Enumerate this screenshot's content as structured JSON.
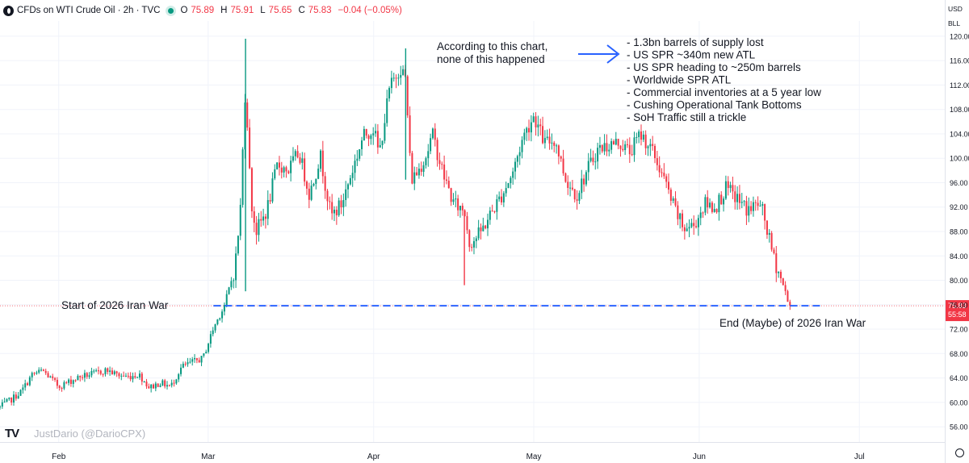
{
  "header": {
    "symbol": "CFDs on WTI Crude Oil · 2h · TVC",
    "o_label": "O",
    "o_value": "75.89",
    "h_label": "H",
    "h_value": "75.91",
    "l_label": "L",
    "l_value": "75.65",
    "c_label": "C",
    "c_value": "75.83",
    "change": "−0.04 (−0.05%)"
  },
  "currency": "USD",
  "unit": "BLL",
  "watermark": "JustDario (@DarioCPX)",
  "tv_logo": "TV",
  "colors": {
    "up": "#089981",
    "down": "#f23645",
    "trend_line": "#2962ff",
    "arrow": "#2962ff",
    "grid": "#f0f3fa",
    "text": "#131722"
  },
  "chart_data": {
    "type": "candlestick",
    "title": "CFDs on WTI Crude Oil · 2h · TVC",
    "xlabel": "",
    "ylabel": "",
    "ylim": [
      53.5,
      122.5
    ],
    "y_ticks": [
      "56.00",
      "60.00",
      "64.00",
      "68.00",
      "72.00",
      "76.00",
      "80.00",
      "84.00",
      "88.00",
      "92.00",
      "96.00",
      "100.00",
      "104.00",
      "108.00",
      "112.00",
      "116.00",
      "120.00"
    ],
    "x_ticks": [
      "Feb",
      "Mar",
      "Apr",
      "May",
      "Jun",
      "Jul"
    ],
    "x_domain": [
      "2026-01-21",
      "2026-07-17"
    ],
    "x_tick_dates": [
      "2026-02-01",
      "2026-03-01",
      "2026-04-01",
      "2026-05-01",
      "2026-06-01",
      "2026-07-01"
    ],
    "grid": true,
    "last_price": "75.83",
    "countdown": "55:58",
    "price_path": [
      [
        "2026-01-21",
        59.2
      ],
      [
        "2026-01-23",
        60.4
      ],
      [
        "2026-01-25",
        61.8
      ],
      [
        "2026-01-27",
        64.5
      ],
      [
        "2026-01-29",
        65.2
      ],
      [
        "2026-02-01",
        62.6
      ],
      [
        "2026-02-03",
        63.4
      ],
      [
        "2026-02-05",
        64.2
      ],
      [
        "2026-02-08",
        64.8
      ],
      [
        "2026-02-10",
        65.3
      ],
      [
        "2026-02-12",
        64.5
      ],
      [
        "2026-02-14",
        64.2
      ],
      [
        "2026-02-16",
        64.6
      ],
      [
        "2026-02-18",
        62.4
      ],
      [
        "2026-02-20",
        63.2
      ],
      [
        "2026-02-22",
        62.6
      ],
      [
        "2026-02-24",
        65.8
      ],
      [
        "2026-02-26",
        66.6
      ],
      [
        "2026-02-28",
        67.2
      ],
      [
        "2026-03-02",
        72.2
      ],
      [
        "2026-03-04",
        75.8
      ],
      [
        "2026-03-06",
        82.0
      ],
      [
        "2026-03-07",
        91.0
      ],
      [
        "2026-03-08",
        112.5
      ],
      [
        "2026-03-09",
        93.0
      ],
      [
        "2026-03-10",
        88.0
      ],
      [
        "2026-03-12",
        91.5
      ],
      [
        "2026-03-14",
        99.0
      ],
      [
        "2026-03-16",
        98.0
      ],
      [
        "2026-03-18",
        101.0
      ],
      [
        "2026-03-20",
        94.0
      ],
      [
        "2026-03-22",
        100.5
      ],
      [
        "2026-03-24",
        90.5
      ],
      [
        "2026-03-26",
        92.5
      ],
      [
        "2026-03-28",
        98.0
      ],
      [
        "2026-03-30",
        103.5
      ],
      [
        "2026-04-01",
        105.0
      ],
      [
        "2026-04-02",
        100.5
      ],
      [
        "2026-04-04",
        111.5
      ],
      [
        "2026-04-06",
        115.0
      ],
      [
        "2026-04-07",
        113.0
      ],
      [
        "2026-04-08",
        96.5
      ],
      [
        "2026-04-09",
        97.5
      ],
      [
        "2026-04-11",
        100.8
      ],
      [
        "2026-04-12",
        104.0
      ],
      [
        "2026-04-14",
        97.5
      ],
      [
        "2026-04-16",
        92.5
      ],
      [
        "2026-04-18",
        91.5
      ],
      [
        "2026-04-19",
        86.0
      ],
      [
        "2026-04-21",
        87.8
      ],
      [
        "2026-04-23",
        91.0
      ],
      [
        "2026-04-25",
        94.0
      ],
      [
        "2026-04-27",
        97.5
      ],
      [
        "2026-04-29",
        103.5
      ],
      [
        "2026-05-01",
        107.0
      ],
      [
        "2026-05-03",
        102.5
      ],
      [
        "2026-05-05",
        103.0
      ],
      [
        "2026-05-07",
        96.5
      ],
      [
        "2026-05-09",
        94.0
      ],
      [
        "2026-05-11",
        98.0
      ],
      [
        "2026-05-13",
        101.5
      ],
      [
        "2026-05-15",
        102.2
      ],
      [
        "2026-05-17",
        102.6
      ],
      [
        "2026-05-19",
        101.0
      ],
      [
        "2026-05-21",
        104.0
      ],
      [
        "2026-05-23",
        101.5
      ],
      [
        "2026-05-25",
        97.5
      ],
      [
        "2026-05-27",
        92.5
      ],
      [
        "2026-05-29",
        88.5
      ],
      [
        "2026-05-31",
        89.0
      ],
      [
        "2026-06-02",
        92.5
      ],
      [
        "2026-06-04",
        92.0
      ],
      [
        "2026-06-06",
        95.0
      ],
      [
        "2026-06-08",
        93.5
      ],
      [
        "2026-06-10",
        91.5
      ],
      [
        "2026-06-12",
        92.5
      ],
      [
        "2026-06-13",
        91.0
      ],
      [
        "2026-06-14",
        87.0
      ],
      [
        "2026-06-15",
        83.5
      ],
      [
        "2026-06-16",
        81.0
      ],
      [
        "2026-06-18",
        75.83
      ]
    ]
  },
  "annotations": {
    "start_label": "Start of 2026 Iran War",
    "end_label": "End (Maybe) of 2026 Iran War",
    "chart_note_line1": "According to this chart,",
    "chart_note_line2": "none of this happened",
    "bullets": [
      "- 1.3bn barrels of supply lost",
      "- US SPR ~340m new ATL",
      "- US SPR heading to ~250m barrels",
      "- Worldwide SPR ATL",
      "- Commercial inventories at a 5 year low",
      "- Cushing Operational Tank Bottoms",
      "- SoH Traffic still a trickle"
    ]
  }
}
